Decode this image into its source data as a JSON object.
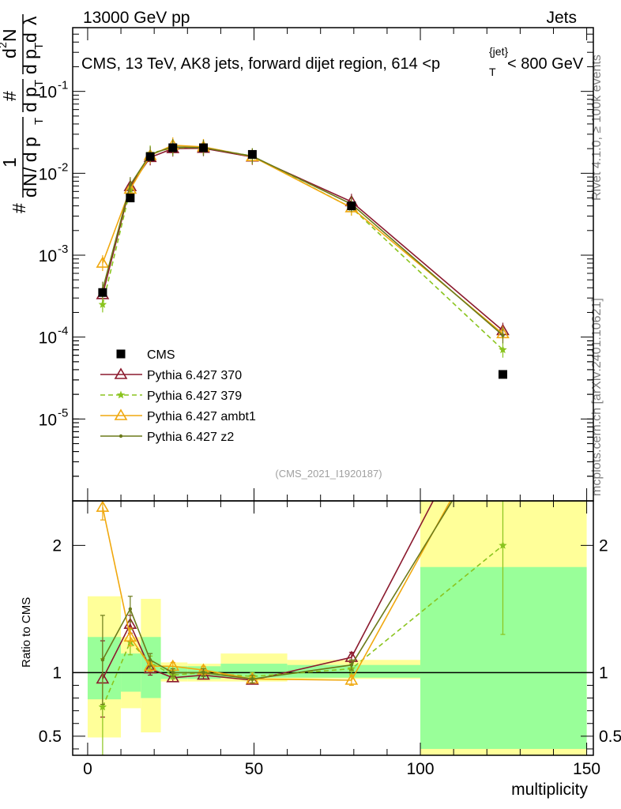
{
  "header": {
    "left": "13000 GeV pp",
    "right": "Jets"
  },
  "side_labels": {
    "rivet": "Rivet 4.1.0, ≥ 100k events",
    "mcplots": "mcplots.cern.ch [arXiv:2401.10621]"
  },
  "chart_data": {
    "type": "line",
    "title": "CMS, 13 TeV, AK8 jets, forward dijet region, 614 <p_T^{jet}< 800 GeV",
    "title_parts": {
      "main": "CMS, 13 TeV, AK8 jets, forward dijet region, 614 <p",
      "sub": "T",
      "sup": "{jet}",
      "tail": "< 800 GeV"
    },
    "analysis_id": "(CMS_2021_I1920187)",
    "xlabel": "multiplicity",
    "ylabel": "1/N dN/dp_T dλ",
    "ylabel_top": {
      "sym": "#",
      "num": "1",
      "den_a": "d",
      "den_n": "N",
      "den_rest": " / d p",
      "den_sub": "T",
      "frac2_num": "#",
      "frac2_den": "d p",
      "frac2_den_sub": "T",
      "frac3_num": "d",
      "frac3_sup": "2",
      "frac3_N": "N",
      "frac3_den_a": "d p",
      "frac3_den_sub": "T",
      "frac3_den_b": " d",
      "lambda": "λ"
    },
    "ratio_ylabel": "Ratio to CMS",
    "xlim": [
      -4.5,
      152
    ],
    "ylim_log": [
      1e-06,
      0.6
    ],
    "ratio_ylim": [
      0.35,
      2.35
    ],
    "x_ticks": [
      0,
      50,
      100,
      150
    ],
    "y_ticks": [
      {
        "value": 1e-05,
        "base": "10",
        "exp": "-5"
      },
      {
        "value": 0.0001,
        "base": "10",
        "exp": "-4"
      },
      {
        "value": 0.001,
        "base": "10",
        "exp": "-3"
      },
      {
        "value": 0.01,
        "base": "10",
        "exp": "-2"
      },
      {
        "value": 0.1,
        "base": "10",
        "exp": "-1"
      }
    ],
    "ratio_ticks": [
      {
        "value": 0.5,
        "label": "0.5"
      },
      {
        "value": 1,
        "label": "1"
      },
      {
        "value": 2,
        "label": "2"
      }
    ],
    "bins": [
      0,
      10,
      16,
      22,
      30,
      40,
      60,
      100,
      150
    ],
    "data": {
      "name": "CMS",
      "x": [
        4.5,
        12.8,
        18.8,
        25.6,
        34.8,
        49.5,
        79.3,
        124.8
      ],
      "y": [
        0.00035,
        0.005,
        0.016,
        0.0205,
        0.0205,
        0.017,
        0.004,
        3.5e-05
      ]
    },
    "band_inner": [
      [
        0.79,
        1.28
      ],
      [
        0.85,
        1.15
      ],
      [
        0.8,
        1.28
      ],
      [
        0.95,
        1.05
      ],
      [
        0.95,
        1.05
      ],
      [
        0.96,
        1.07
      ],
      [
        0.96,
        1.06
      ],
      [
        0.4,
        1.83
      ]
    ],
    "band_outer": [
      [
        0.49,
        1.6
      ],
      [
        0.72,
        1.28
      ],
      [
        0.53,
        1.58
      ],
      [
        0.93,
        1.08
      ],
      [
        0.93,
        1.07
      ],
      [
        0.93,
        1.15
      ],
      [
        0.95,
        1.1
      ],
      [
        0.3,
        2.4
      ]
    ],
    "series": [
      {
        "name": "Pythia 6.427 370",
        "color": "#8b1a2e",
        "dash": "",
        "marker": "triangle-open",
        "x": [
          4.5,
          12.8,
          18.8,
          25.6,
          34.8,
          49.5,
          79.3,
          124.8
        ],
        "y": [
          0.00033,
          0.0069,
          0.0156,
          0.02,
          0.0202,
          0.0158,
          0.0045,
          0.00012
        ],
        "ratio": [
          0.95,
          1.38,
          1.03,
          0.96,
          0.98,
          0.94,
          1.12,
          3.4
        ],
        "ratio_err": [
          0.3,
          0.07,
          0.05,
          0.03,
          0.03,
          0.03,
          0.04,
          0.5
        ]
      },
      {
        "name": "Pythia 6.427 379",
        "color": "#8ac41e",
        "dash": "6,4",
        "marker": "star",
        "x": [
          4.5,
          12.8,
          18.8,
          25.6,
          34.8,
          49.5,
          79.3,
          124.8
        ],
        "y": [
          0.00025,
          0.0063,
          0.0175,
          0.0205,
          0.0208,
          0.0162,
          0.0038,
          7e-05
        ],
        "ratio": [
          0.73,
          1.24,
          1.08,
          0.98,
          1.0,
          0.97,
          1.03,
          2.0
        ],
        "ratio_err": [
          0.38,
          0.1,
          0.05,
          0.03,
          0.03,
          0.03,
          0.04,
          0.7
        ]
      },
      {
        "name": "Pythia 6.427 ambt1",
        "color": "#f0a80e",
        "dash": "",
        "marker": "triangle-open",
        "x": [
          4.5,
          12.8,
          18.8,
          25.6,
          34.8,
          49.5,
          79.3,
          124.8
        ],
        "y": [
          0.0008,
          0.0064,
          0.0165,
          0.022,
          0.021,
          0.016,
          0.0038,
          0.00011
        ],
        "ratio": [
          2.3,
          1.28,
          1.05,
          1.05,
          1.02,
          0.95,
          0.94,
          3.1
        ],
        "ratio_err": [
          0.1,
          0.07,
          0.04,
          0.03,
          0.03,
          0.03,
          0.04,
          0.5
        ]
      },
      {
        "name": "Pythia 6.427 z2",
        "color": "#6b7a1a",
        "dash": "",
        "marker": "dot",
        "x": [
          4.5,
          12.8,
          18.8,
          25.6,
          34.8,
          49.5,
          79.3,
          124.8
        ],
        "y": [
          0.00038,
          0.0072,
          0.017,
          0.021,
          0.0205,
          0.0162,
          0.0042,
          0.000105
        ],
        "ratio": [
          1.1,
          1.5,
          1.1,
          1.0,
          1.0,
          0.95,
          1.06,
          3.0
        ],
        "ratio_err": [
          0.35,
          0.1,
          0.05,
          0.03,
          0.03,
          0.03,
          0.04,
          0.5
        ]
      }
    ],
    "legend_position": "lower-left"
  }
}
